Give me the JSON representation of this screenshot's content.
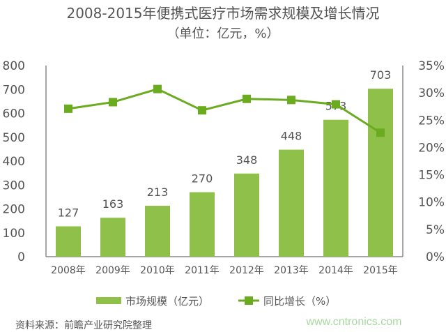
{
  "chart_data": {
    "type": "bar+line",
    "title": "2008-2015年便携式医疗市场需求规模及增长情况",
    "subtitle": "（单位：亿元，%）",
    "categories": [
      "2008年",
      "2009年",
      "2010年",
      "2011年",
      "2012年",
      "2013年",
      "2014年",
      "2015年"
    ],
    "series": [
      {
        "name": "市场规模（亿元）",
        "type": "bar",
        "axis": "left",
        "values": [
          127,
          163,
          213,
          270,
          348,
          448,
          573,
          703
        ],
        "color": "#8fc04a"
      },
      {
        "name": "同比增长（%）",
        "type": "line",
        "axis": "right",
        "values": [
          27.1,
          28.3,
          30.7,
          26.8,
          28.9,
          28.7,
          27.9,
          22.7
        ],
        "color": "#6aab1f"
      }
    ],
    "ylim_left": [
      0,
      800
    ],
    "yticks_left": [
      "0",
      "100",
      "200",
      "300",
      "400",
      "500",
      "600",
      "700",
      "800"
    ],
    "ylim_right": [
      0,
      35
    ],
    "yticks_right": [
      "0%",
      "5%",
      "10%",
      "15%",
      "20%",
      "25%",
      "30%",
      "35%"
    ],
    "grid": false,
    "legend_position": "bottom"
  },
  "source": "资料来源：前瞻产业研究院整理",
  "watermark": "www.cntronics.com"
}
